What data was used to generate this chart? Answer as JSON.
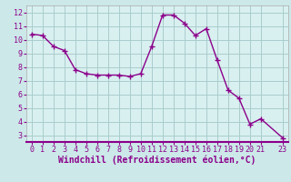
{
  "x": [
    0,
    1,
    2,
    3,
    4,
    5,
    6,
    7,
    8,
    9,
    10,
    11,
    12,
    13,
    14,
    15,
    16,
    17,
    18,
    19,
    20,
    21,
    23
  ],
  "y": [
    10.4,
    10.3,
    9.5,
    9.2,
    7.8,
    7.5,
    7.4,
    7.4,
    7.4,
    7.3,
    7.5,
    9.5,
    11.8,
    11.8,
    11.2,
    10.3,
    10.8,
    8.5,
    6.3,
    5.7,
    3.8,
    4.2,
    2.8
  ],
  "line_color": "#8B008B",
  "marker": "+",
  "bg_color": "#cce8e8",
  "grid_color": "#aacccc",
  "axis_bg": "#d9f0f0",
  "xlabel": "Windchill (Refroidissement éolien,°C)",
  "xlim": [
    -0.5,
    23.5
  ],
  "ylim": [
    2.5,
    12.5
  ],
  "xticks": [
    0,
    1,
    2,
    3,
    4,
    5,
    6,
    7,
    8,
    9,
    10,
    11,
    12,
    13,
    14,
    15,
    16,
    17,
    18,
    19,
    20,
    21,
    23
  ],
  "yticks": [
    3,
    4,
    5,
    6,
    7,
    8,
    9,
    10,
    11,
    12
  ],
  "tick_label_size": 6,
  "xlabel_size": 7,
  "line_width": 1.0,
  "marker_size": 4,
  "spine_color": "#8B008B"
}
